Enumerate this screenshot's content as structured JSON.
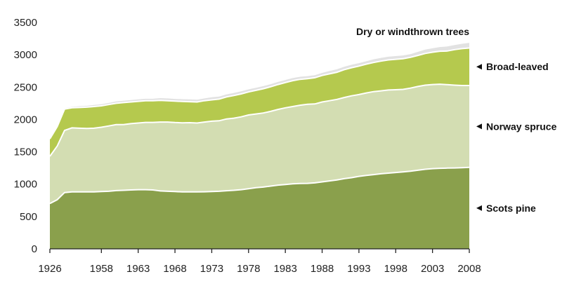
{
  "chart_data": {
    "type": "area",
    "stacked": true,
    "title": "",
    "xlabel": "",
    "ylabel": "",
    "x": [
      1926,
      1952,
      1953,
      1954,
      1955,
      1956,
      1957,
      1958,
      1959,
      1960,
      1961,
      1962,
      1963,
      1964,
      1965,
      1966,
      1967,
      1968,
      1969,
      1970,
      1971,
      1972,
      1973,
      1974,
      1975,
      1976,
      1977,
      1978,
      1979,
      1980,
      1981,
      1982,
      1983,
      1984,
      1985,
      1986,
      1987,
      1988,
      1989,
      1990,
      1991,
      1992,
      1993,
      1994,
      1995,
      1996,
      1997,
      1998,
      1999,
      2000,
      2001,
      2002,
      2003,
      2004,
      2005,
      2006,
      2007,
      2008
    ],
    "x_tick_labels": [
      "1926",
      "1958",
      "1963",
      "1968",
      "1973",
      "1978",
      "1983",
      "1988",
      "1993",
      "1998",
      "2003",
      "2008"
    ],
    "y_ticks": [
      0,
      500,
      1000,
      1500,
      2000,
      2500,
      3000,
      3500
    ],
    "ylim": [
      0,
      3500
    ],
    "grid": false,
    "legend": "right-side labels with arrows",
    "series": [
      {
        "name": "Scots pine",
        "color": "#8aa04c",
        "values": [
          700,
          760,
          870,
          880,
          880,
          880,
          880,
          885,
          890,
          900,
          905,
          910,
          915,
          915,
          910,
          895,
          890,
          885,
          880,
          880,
          880,
          882,
          885,
          890,
          898,
          905,
          915,
          930,
          945,
          955,
          970,
          985,
          995,
          1005,
          1010,
          1012,
          1020,
          1035,
          1050,
          1065,
          1085,
          1100,
          1120,
          1135,
          1148,
          1160,
          1170,
          1180,
          1190,
          1200,
          1215,
          1230,
          1240,
          1245,
          1248,
          1250,
          1255,
          1260
        ]
      },
      {
        "name": "Norway spruce",
        "color": "#d3ddb2",
        "values": [
          730,
          830,
          960,
          990,
          985,
          980,
          985,
          995,
          1010,
          1020,
          1015,
          1025,
          1030,
          1040,
          1045,
          1065,
          1070,
          1068,
          1068,
          1070,
          1065,
          1078,
          1088,
          1090,
          1110,
          1115,
          1125,
          1140,
          1140,
          1145,
          1155,
          1170,
          1185,
          1195,
          1210,
          1223,
          1220,
          1235,
          1240,
          1245,
          1255,
          1265,
          1265,
          1275,
          1282,
          1282,
          1285,
          1280,
          1275,
          1285,
          1295,
          1300,
          1300,
          1300,
          1290,
          1280,
          1270,
          1265
        ]
      },
      {
        "name": "Broad-leaved",
        "color": "#b5c94e",
        "values": [
          270,
          300,
          330,
          310,
          320,
          330,
          335,
          330,
          330,
          330,
          340,
          335,
          335,
          335,
          335,
          335,
          330,
          330,
          330,
          325,
          325,
          330,
          330,
          335,
          340,
          350,
          355,
          355,
          365,
          375,
          380,
          385,
          390,
          400,
          400,
          395,
          405,
          410,
          415,
          420,
          430,
          435,
          440,
          445,
          450,
          460,
          465,
          470,
          475,
          475,
          480,
          490,
          500,
          510,
          520,
          550,
          570,
          580
        ]
      },
      {
        "name": "Dry or windthrown trees",
        "color": "#e2e2e2",
        "values": [
          0,
          10,
          10,
          15,
          20,
          20,
          25,
          25,
          25,
          30,
          30,
          30,
          30,
          30,
          30,
          35,
          35,
          35,
          35,
          35,
          35,
          35,
          40,
          40,
          40,
          40,
          40,
          40,
          40,
          40,
          40,
          40,
          40,
          40,
          40,
          40,
          40,
          40,
          45,
          45,
          45,
          45,
          45,
          45,
          50,
          50,
          50,
          50,
          50,
          50,
          55,
          60,
          60,
          65,
          70,
          70,
          75,
          80
        ]
      }
    ]
  }
}
